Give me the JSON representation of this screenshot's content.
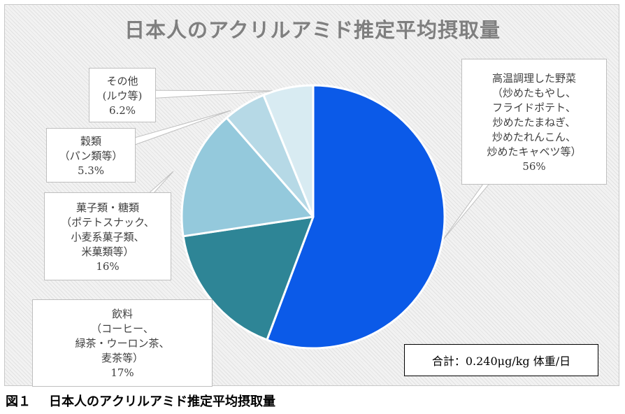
{
  "chart_data": {
    "type": "pie",
    "title": "日本人のアクリルアミド推定平均摂取量",
    "slices": [
      {
        "label_lines": [
          "高温調理した野菜",
          "（炒めたもやし、",
          "フライドポテト、",
          "炒めたたまねぎ、",
          "炒めたれんこん、",
          "炒めたキャベツ等）"
        ],
        "value": 56,
        "value_label": "56%",
        "color": "#0b5ae8"
      },
      {
        "label_lines": [
          "飲料",
          "（コーヒー、",
          "緑茶・ウーロン茶、",
          "麦茶等）"
        ],
        "value": 17,
        "value_label": "17%",
        "color": "#2e8596"
      },
      {
        "label_lines": [
          "菓子類・糖類",
          "（ポテトスナック、",
          "小麦系菓子類、",
          "米菓類等）"
        ],
        "value": 16,
        "value_label": "16%",
        "color": "#94c9dc"
      },
      {
        "label_lines": [
          "穀類",
          "（パン類等）"
        ],
        "value": 5.3,
        "value_label": "5.3%",
        "color": "#b6d9e6"
      },
      {
        "label_lines": [
          "その他",
          "(ルウ等)"
        ],
        "value": 6.2,
        "value_label": "6.2%",
        "color": "#d8ebf2"
      }
    ],
    "start_angle": "12 o'clock",
    "direction": "clockwise",
    "labels": "callouts with leader lines"
  },
  "total_note": "合計：0.240μg/kg 体重/日",
  "caption": {
    "number": "図１",
    "text": "日本人のアクリルアミド推定平均摂取量"
  }
}
